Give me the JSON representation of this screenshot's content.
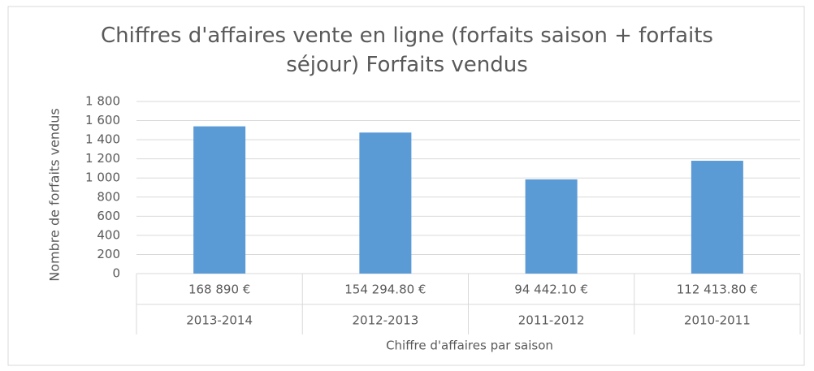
{
  "chart_data": {
    "type": "bar",
    "title": "Chiffres d'affaires vente en ligne (forfaits saison + forfaits séjour) Forfaits vendus",
    "categories": [
      "2013-2014",
      "2012-2013",
      "2011-2012",
      "2010-2011"
    ],
    "revenue_labels": [
      "168 890 €",
      "154 294.80 €",
      "94 442.10 €",
      "112 413.80 €"
    ],
    "values": [
      1540,
      1475,
      985,
      1180
    ],
    "color": "#5b9bd5",
    "x_label": "Chiffre d'affaires par saison",
    "y_label": "Nombre de forfaits vendus",
    "ylim": [
      0,
      1800
    ],
    "yticks": [
      0,
      200,
      400,
      600,
      800,
      {
        "value": 1000,
        "label": "1 000"
      },
      {
        "value": 1200,
        "label": "1 200"
      },
      {
        "value": 1400,
        "label": "1 400"
      },
      {
        "value": 1600,
        "label": "1 600"
      },
      {
        "value": 1800,
        "label": "1 800"
      }
    ],
    "grid": true
  }
}
